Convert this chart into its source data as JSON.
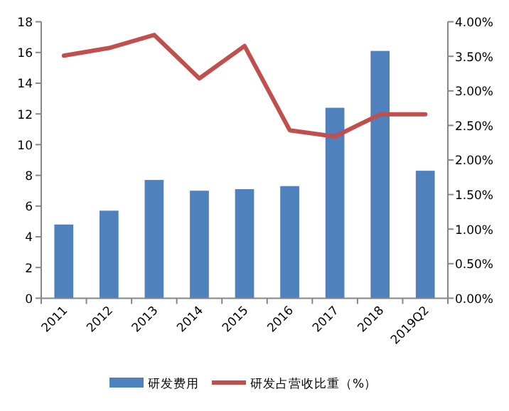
{
  "chart_data": {
    "type": "bar",
    "categories": [
      "2011",
      "2012",
      "2013",
      "2014",
      "2015",
      "2016",
      "2017",
      "2018",
      "2019Q2"
    ],
    "series": [
      {
        "name": "研发费用",
        "color": "#4f81bd",
        "values": [
          4.8,
          5.7,
          7.7,
          7.0,
          7.1,
          7.3,
          12.4,
          16.1,
          8.3
        ]
      },
      {
        "name": "研发占营收比重（%）",
        "type": "line",
        "axis": "y2",
        "color": "#c0504d",
        "values": [
          3.51,
          3.62,
          3.81,
          3.18,
          3.65,
          2.43,
          2.34,
          2.66,
          2.66
        ]
      }
    ],
    "ylim": [
      0,
      18
    ],
    "yticks": [
      0,
      2,
      4,
      6,
      8,
      10,
      12,
      14,
      16,
      18
    ],
    "y2lim": [
      0,
      4
    ],
    "y2ticks": [
      {
        "value": 0,
        "label": "0.00%"
      },
      {
        "value": 0.5,
        "label": "0.50%"
      },
      {
        "value": 1,
        "label": "1.00%"
      },
      {
        "value": 1.5,
        "label": "1.50%"
      },
      {
        "value": 2,
        "label": "2.00%"
      },
      {
        "value": 2.5,
        "label": "2.50%"
      },
      {
        "value": 3,
        "label": "3.00%"
      },
      {
        "value": 3.5,
        "label": "3.50%"
      },
      {
        "value": 4,
        "label": "4.00%"
      }
    ],
    "legend": "bottom",
    "grid": false,
    "marker": "none",
    "line_style": "solid"
  }
}
